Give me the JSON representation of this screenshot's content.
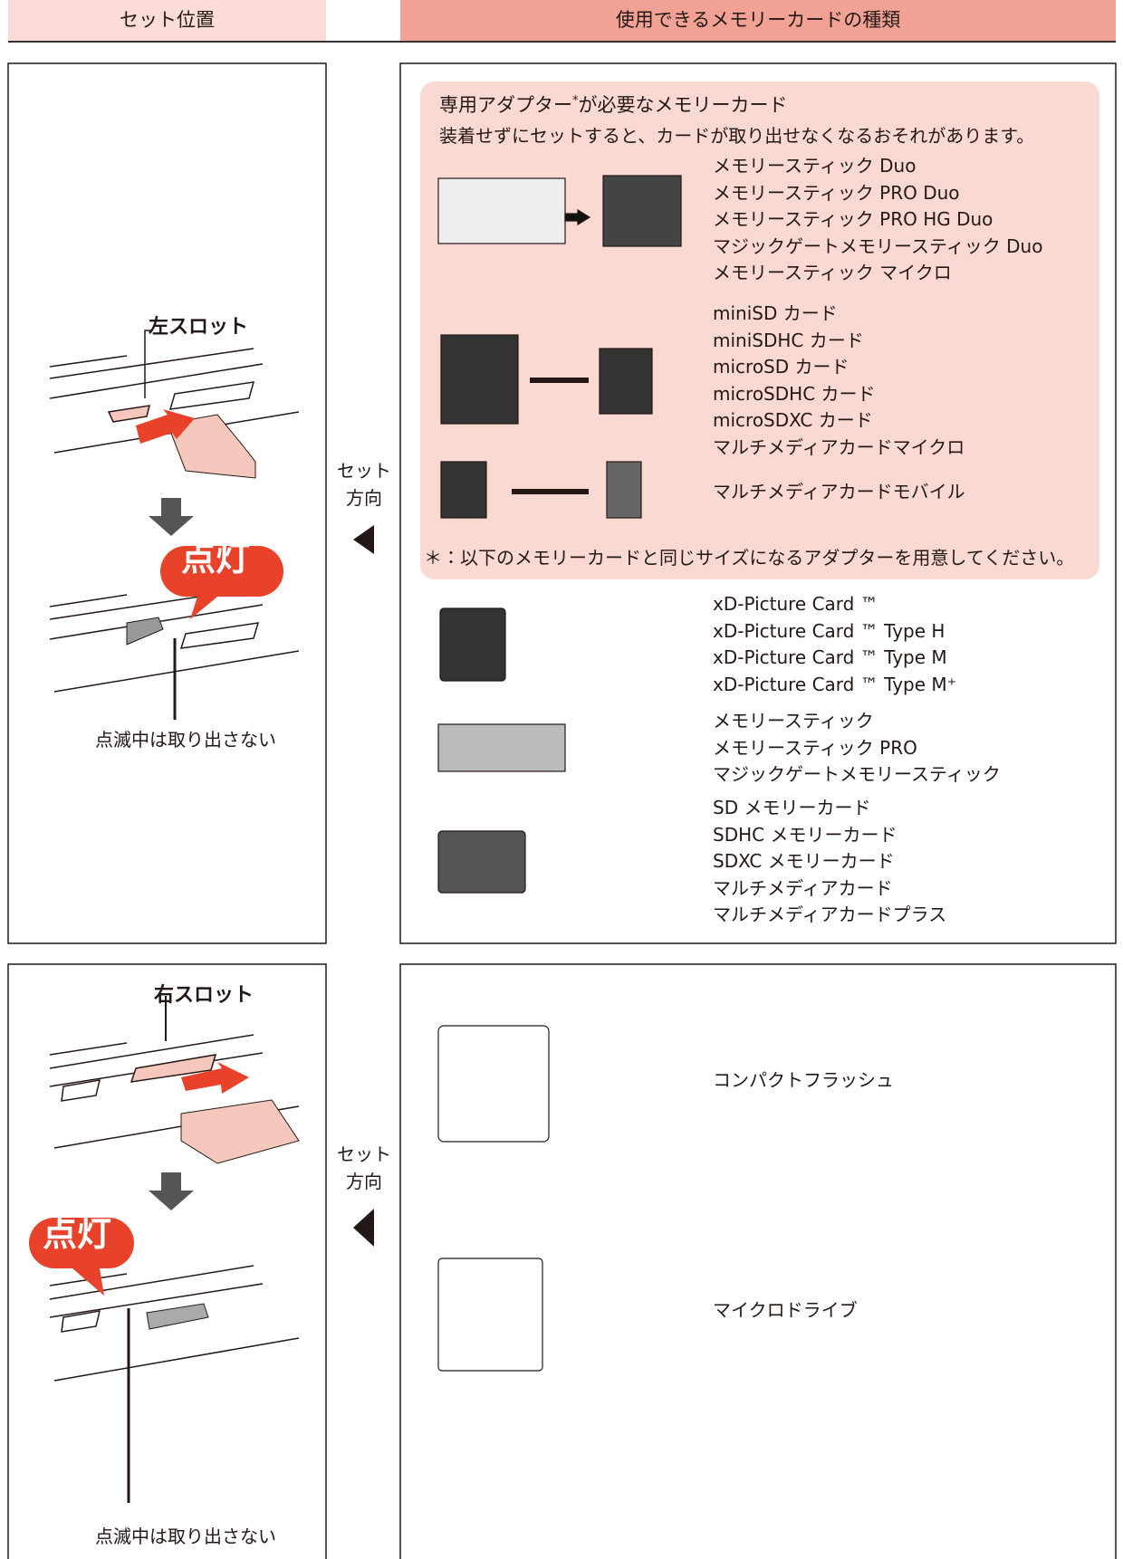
{
  "header": {
    "left": "セット位置",
    "right": "使用できるメモリーカードの種類"
  },
  "sections": [
    {
      "slot_label": "左スロット",
      "lamp_label": "点灯",
      "caution": "点滅中は取り出さない",
      "direction": [
        "セット",
        "方向"
      ],
      "adapter_box": {
        "title_parts": [
          "専用アダプター",
          "*",
          "が必要なメモリーカード"
        ],
        "note": "装着せずにセットすると、カードが取り出せなくなるおそれがあります。",
        "groups": [
          [
            "メモリースティック Duo",
            "メモリースティック PRO Duo",
            "メモリースティック PRO HG Duo",
            "マジックゲートメモリースティック Duo",
            "メモリースティック マイクロ"
          ],
          [
            "miniSD カード",
            "miniSDHC カード",
            "microSD カード",
            "microSDHC カード",
            "microSDXC カード",
            "マルチメディアカードマイクロ"
          ],
          [
            "マルチメディアカードモバイル"
          ]
        ],
        "footnote": "＊：以下のメモリーカードと同じサイズになるアダプターを用意してください。"
      },
      "groups": [
        [
          "xD-Picture Card ™",
          "xD-Picture Card ™ Type H",
          "xD-Picture Card ™ Type M",
          "xD-Picture Card ™ Type M⁺"
        ],
        [
          "メモリースティック",
          "メモリースティック PRO",
          "マジックゲートメモリースティック"
        ],
        [
          "SD メモリーカード",
          "SDHC メモリーカード",
          "SDXC メモリーカード",
          "マルチメディアカード",
          "マルチメディアカードプラス"
        ]
      ]
    },
    {
      "slot_label": "右スロット",
      "lamp_label": "点灯",
      "caution": "点滅中は取り出さない",
      "direction": [
        "セット",
        "方向"
      ],
      "groups": [
        [
          "コンパクトフラッシュ"
        ],
        [
          "マイクロドライブ"
        ]
      ]
    }
  ]
}
